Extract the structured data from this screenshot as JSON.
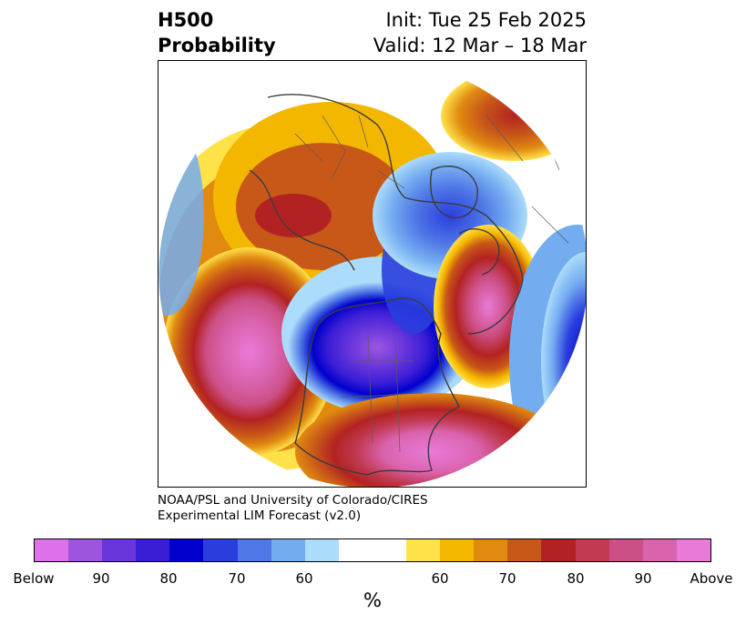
{
  "header": {
    "variable": "H500",
    "product": "Probability",
    "init": "Init: Tue 25 Feb 2025",
    "valid": "Valid: 12 Mar – 18 Mar"
  },
  "credit": {
    "line1": "NOAA/PSL and University of Colorado/CIRES",
    "line2": "Experimental LIM Forecast (v2.0)"
  },
  "map": {
    "projection": "north-polar-stereographic",
    "field": "500 hPa height tercile probability",
    "anomaly_centers": [
      {
        "region": "northeast Pacific",
        "category": "Above"
      },
      {
        "region": "Canada / Hudson Bay",
        "category": "Below"
      },
      {
        "region": "northern Europe / Scandinavia",
        "category": "Above"
      },
      {
        "region": "southeastern United States / Gulf of Mexico",
        "category": "Above"
      },
      {
        "region": "Arctic / Greenland",
        "category": "Below"
      },
      {
        "region": "northwestern Siberia",
        "category": "Above"
      },
      {
        "region": "eastern Atlantic / western Europe edge",
        "category": "Below"
      }
    ]
  },
  "colorbar": {
    "colors": [
      "#de70ea",
      "#9d55e0",
      "#6a36dc",
      "#3a1ed6",
      "#0000cc",
      "#2a3ede",
      "#4f78e6",
      "#74acf0",
      "#acdcfb",
      "#ffffff",
      "#ffffff",
      "#ffe14a",
      "#f4b700",
      "#e08a10",
      "#c85818",
      "#b32222",
      "#c23a52",
      "#cc4f85",
      "#d963ad",
      "#e97ad8"
    ],
    "labels": [
      "Below",
      "90",
      "80",
      "70",
      "60",
      "60",
      "70",
      "80",
      "90",
      "Above"
    ],
    "units": "%"
  },
  "colors": {
    "above_strong": "#e97ad8",
    "above_mid": "#b32222",
    "above_weak": "#ffe14a",
    "below_weak": "#acdcfb",
    "below_mid": "#0000cc",
    "below_strong": "#9d55e0",
    "coastline": "#3c3c3c"
  }
}
